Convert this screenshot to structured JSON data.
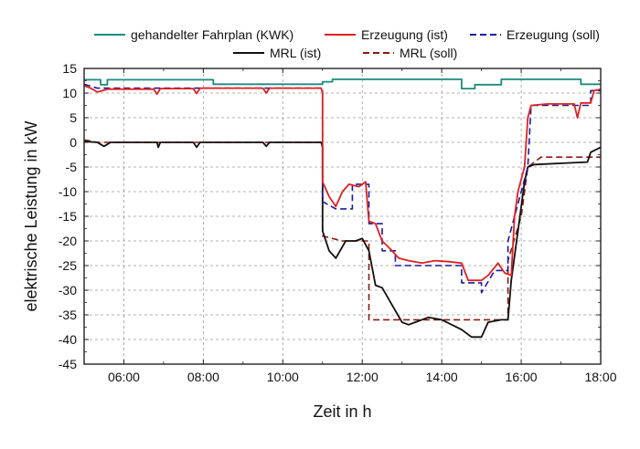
{
  "chart_data": {
    "type": "line",
    "title": "",
    "xlabel": "Zeit in h",
    "ylabel": "elektrische Leistung in kW",
    "xlim": [
      "05:00",
      "18:00"
    ],
    "ylim": [
      -45,
      15
    ],
    "grid": true,
    "legend_position": "top",
    "x_ticks": [
      "06:00",
      "08:00",
      "10:00",
      "12:00",
      "14:00",
      "16:00",
      "18:00"
    ],
    "y_ticks": [
      15,
      10,
      5,
      0,
      -5,
      -10,
      -15,
      -20,
      -25,
      -30,
      -35,
      -40,
      -45
    ],
    "series": [
      {
        "name": "gehandelter Fahrplan  (KWK)",
        "color": "#1a8a80",
        "style": "solid",
        "points": [
          [
            "05:00",
            12.7
          ],
          [
            "05:25",
            12.7
          ],
          [
            "05:25",
            11.7
          ],
          [
            "05:35",
            11.7
          ],
          [
            "05:35",
            12.7
          ],
          [
            "08:15",
            12.7
          ],
          [
            "08:15",
            11.8
          ],
          [
            "11:00",
            11.8
          ],
          [
            "11:00",
            12.3
          ],
          [
            "11:15",
            12.3
          ],
          [
            "11:15",
            12.8
          ],
          [
            "14:30",
            12.8
          ],
          [
            "14:30",
            10.9
          ],
          [
            "14:50",
            10.9
          ],
          [
            "14:50",
            11.7
          ],
          [
            "15:30",
            11.7
          ],
          [
            "15:30",
            12.8
          ],
          [
            "17:30",
            12.8
          ],
          [
            "17:30",
            11.8
          ],
          [
            "18:00",
            11.8
          ]
        ]
      },
      {
        "name": "Erzeugung (ist)",
        "color": "#e02020",
        "style": "solid",
        "points": [
          [
            "05:00",
            11.5
          ],
          [
            "05:10",
            11.0
          ],
          [
            "05:20",
            10.2
          ],
          [
            "05:35",
            10.8
          ],
          [
            "06:00",
            10.8
          ],
          [
            "06:45",
            10.8
          ],
          [
            "06:50",
            9.8
          ],
          [
            "06:55",
            10.9
          ],
          [
            "07:45",
            10.9
          ],
          [
            "07:50",
            9.9
          ],
          [
            "07:55",
            11.0
          ],
          [
            "09:30",
            11.0
          ],
          [
            "09:35",
            10.0
          ],
          [
            "09:40",
            11.0
          ],
          [
            "10:58",
            11.0
          ],
          [
            "11:00",
            10.0
          ],
          [
            "11:00",
            -8.0
          ],
          [
            "11:10",
            -11.0
          ],
          [
            "11:20",
            -13.0
          ],
          [
            "11:30",
            -10.0
          ],
          [
            "11:40",
            -8.5
          ],
          [
            "11:55",
            -9.0
          ],
          [
            "12:05",
            -8.0
          ],
          [
            "12:10",
            -16.0
          ],
          [
            "12:20",
            -16.5
          ],
          [
            "12:30",
            -20.0
          ],
          [
            "12:45",
            -22.0
          ],
          [
            "12:55",
            -23.5
          ],
          [
            "13:10",
            -24.0
          ],
          [
            "13:30",
            -24.5
          ],
          [
            "13:50",
            -24.0
          ],
          [
            "14:10",
            -24.2
          ],
          [
            "14:30",
            -24.5
          ],
          [
            "14:40",
            -28.0
          ],
          [
            "15:00",
            -28.0
          ],
          [
            "15:10",
            -27.0
          ],
          [
            "15:25",
            -24.5
          ],
          [
            "15:35",
            -26.5
          ],
          [
            "15:45",
            -27.0
          ],
          [
            "15:50",
            -15.0
          ],
          [
            "15:55",
            -10.0
          ],
          [
            "16:05",
            -5.0
          ],
          [
            "16:10",
            5.0
          ],
          [
            "16:15",
            7.5
          ],
          [
            "16:40",
            7.8
          ],
          [
            "17:20",
            7.8
          ],
          [
            "17:25",
            5.0
          ],
          [
            "17:30",
            8.0
          ],
          [
            "17:45",
            8.0
          ],
          [
            "17:50",
            10.5
          ],
          [
            "18:00",
            10.8
          ]
        ]
      },
      {
        "name": "Erzeugung  (soll)",
        "color": "#1a1aa0",
        "style": "dashed",
        "points": [
          [
            "05:00",
            11.8
          ],
          [
            "05:20",
            11.0
          ],
          [
            "06:00",
            11.0
          ],
          [
            "11:00",
            11.0
          ],
          [
            "11:00",
            -12.0
          ],
          [
            "11:20",
            -13.5
          ],
          [
            "11:45",
            -13.5
          ],
          [
            "11:45",
            -8.5
          ],
          [
            "12:10",
            -8.5
          ],
          [
            "12:10",
            -16.5
          ],
          [
            "12:30",
            -16.5
          ],
          [
            "12:30",
            -22.0
          ],
          [
            "12:50",
            -22.0
          ],
          [
            "12:50",
            -25.0
          ],
          [
            "14:30",
            -25.0
          ],
          [
            "14:30",
            -28.5
          ],
          [
            "15:00",
            -28.5
          ],
          [
            "15:00",
            -30.5
          ],
          [
            "15:20",
            -26.0
          ],
          [
            "15:40",
            -26.0
          ],
          [
            "15:40",
            -20.0
          ],
          [
            "16:00",
            -10.0
          ],
          [
            "16:10",
            -5.0
          ],
          [
            "16:15",
            7.5
          ],
          [
            "17:45",
            7.5
          ],
          [
            "17:45",
            10.5
          ],
          [
            "18:00",
            10.5
          ]
        ]
      },
      {
        "name": "MRL (ist)",
        "color": "#111111",
        "style": "solid",
        "points": [
          [
            "05:00",
            0.2
          ],
          [
            "05:20",
            0.0
          ],
          [
            "05:30",
            -0.8
          ],
          [
            "05:40",
            0.0
          ],
          [
            "06:00",
            0.0
          ],
          [
            "06:50",
            0.0
          ],
          [
            "06:52",
            -1.0
          ],
          [
            "06:55",
            0.0
          ],
          [
            "07:45",
            0.0
          ],
          [
            "07:50",
            -1.0
          ],
          [
            "07:55",
            0.0
          ],
          [
            "09:30",
            0.0
          ],
          [
            "09:35",
            -0.8
          ],
          [
            "09:40",
            0.0
          ],
          [
            "10:58",
            0.0
          ],
          [
            "11:00",
            -1.0
          ],
          [
            "11:00",
            -18.0
          ],
          [
            "11:10",
            -22.0
          ],
          [
            "11:20",
            -23.5
          ],
          [
            "11:35",
            -20.0
          ],
          [
            "11:50",
            -20.0
          ],
          [
            "12:00",
            -19.5
          ],
          [
            "12:10",
            -22.0
          ],
          [
            "12:20",
            -29.0
          ],
          [
            "12:30",
            -29.5
          ],
          [
            "12:45",
            -33.0
          ],
          [
            "13:00",
            -36.5
          ],
          [
            "13:10",
            -37.0
          ],
          [
            "13:20",
            -36.5
          ],
          [
            "13:40",
            -35.5
          ],
          [
            "14:00",
            -36.0
          ],
          [
            "14:30",
            -38.0
          ],
          [
            "14:45",
            -39.5
          ],
          [
            "15:00",
            -39.5
          ],
          [
            "15:10",
            -36.5
          ],
          [
            "15:30",
            -36.0
          ],
          [
            "15:40",
            -36.0
          ],
          [
            "15:45",
            -28.0
          ],
          [
            "15:55",
            -18.0
          ],
          [
            "16:05",
            -8.0
          ],
          [
            "16:10",
            -5.0
          ],
          [
            "16:20",
            -4.5
          ],
          [
            "17:40",
            -4.0
          ],
          [
            "17:45",
            -2.0
          ],
          [
            "18:00",
            -1.0
          ]
        ]
      },
      {
        "name": "MRL (soll)",
        "color": "#8a1a10",
        "style": "dashed",
        "points": [
          [
            "05:00",
            0.5
          ],
          [
            "05:20",
            0.0
          ],
          [
            "06:00",
            0.0
          ],
          [
            "11:00",
            0.0
          ],
          [
            "11:00",
            -19.0
          ],
          [
            "11:30",
            -20.0
          ],
          [
            "12:10",
            -20.0
          ],
          [
            "12:10",
            -36.0
          ],
          [
            "15:40",
            -36.0
          ],
          [
            "15:40",
            -24.0
          ],
          [
            "16:00",
            -15.0
          ],
          [
            "16:10",
            -5.0
          ],
          [
            "16:30",
            -3.0
          ],
          [
            "18:00",
            -3.0
          ]
        ]
      }
    ]
  }
}
